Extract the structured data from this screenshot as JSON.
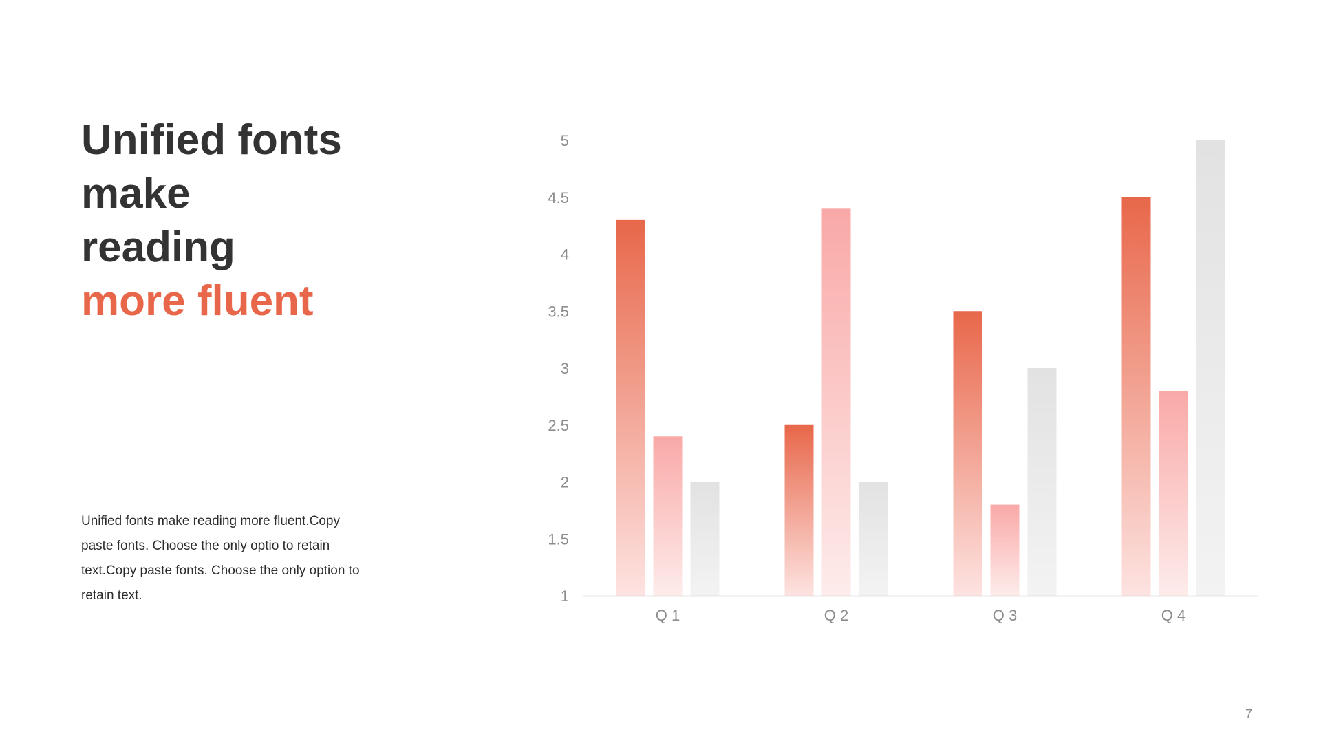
{
  "slide": {
    "title_lines": [
      "Unified fonts",
      "make",
      "reading"
    ],
    "title_accent": "more fluent",
    "body": "Unified  fonts make reading more fluent.Copy paste fonts. Choose the only optio to retain text.Copy paste  fonts. Choose the only option to retain text.",
    "page_number": "7"
  },
  "colors": {
    "accent": "#e8674a",
    "series_1_top": "#e8674a",
    "series_1_bottom": "#fde3e1",
    "series_2_top": "#f9a9a7",
    "series_2_bottom": "#fdeceb",
    "series_3_top": "#e2e2e2",
    "series_3_bottom": "#f3f3f3",
    "axis_text": "#8c8c8c",
    "axis_line": "#d0d0d0"
  },
  "chart_data": {
    "type": "bar",
    "categories": [
      "Q 1",
      "Q 2",
      "Q 3",
      "Q 4"
    ],
    "series": [
      {
        "values": [
          4.3,
          2.5,
          3.5,
          4.5
        ]
      },
      {
        "values": [
          2.4,
          4.4,
          1.8,
          2.8
        ]
      },
      {
        "values": [
          2.0,
          2.0,
          3.0,
          5.0
        ]
      }
    ],
    "y_ticks": [
      "1",
      "1.5",
      "2",
      "2.5",
      "3",
      "3.5",
      "4",
      "4.5",
      "5"
    ],
    "ylim": [
      1,
      5
    ],
    "grid": false,
    "legend": "none"
  }
}
